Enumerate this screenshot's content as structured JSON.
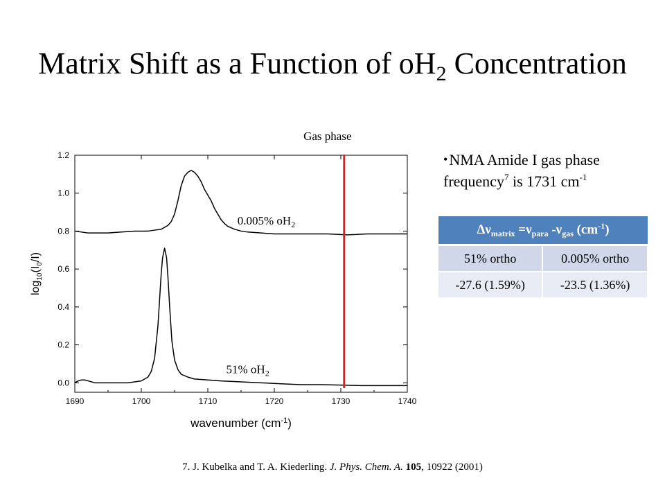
{
  "slide": {
    "title_main": "Matrix Shift as a Function of oH",
    "title_sub": "2",
    "title_end": " Concentration",
    "bullet": {
      "text_a": "NMA Amide I gas phase frequency",
      "sup": "7",
      "text_b": " is 1731 cm",
      "unit_sup": "-1"
    },
    "table": {
      "header": {
        "delta_nu": "Δν",
        "sub_matrix": "matrix",
        "eq": " =ν",
        "sub_para": "para",
        "minus": " -ν",
        "sub_gas": "gas",
        "unit_open": " (cm",
        "unit_sup": "-1",
        "unit_close": ")"
      },
      "rows": [
        [
          "51% ortho",
          "0.005% ortho"
        ],
        [
          "-27.6 (1.59%)",
          "-23.5 (1.36%)"
        ]
      ]
    },
    "reference": {
      "num": "7.  J. Kubelka and T. A. Kiederling. ",
      "journal": "J. Phys. Chem. A.",
      "vol": "105",
      "rest": ", 10922 (2001)"
    }
  },
  "chart_data": {
    "type": "line",
    "xlabel": "wavenumber (cm-1)",
    "ylabel": "log10(I0/I)",
    "xlim": [
      1690,
      1740
    ],
    "ylim": [
      -0.05,
      1.2
    ],
    "xticks": [
      1690,
      1700,
      1710,
      1720,
      1730,
      1740
    ],
    "xtick_labels": [
      "1690",
      "1700",
      "1710",
      "1720",
      "1730",
      "1740"
    ],
    "yticks": [
      0.0,
      0.2,
      0.4,
      0.6,
      0.8,
      1.0,
      1.2
    ],
    "ytick_labels": [
      "0.0",
      "0.2",
      "0.4",
      "0.6",
      "0.8",
      "1.0",
      "1.2"
    ],
    "grid": false,
    "series": [
      {
        "name": "0.005% oH2",
        "color": "#000000",
        "x": [
          1690,
          1691,
          1692,
          1693,
          1695,
          1697,
          1699,
          1700,
          1701,
          1702,
          1703,
          1704,
          1704.5,
          1705,
          1705.5,
          1706,
          1706.5,
          1707,
          1707.5,
          1708,
          1708.5,
          1709,
          1709.5,
          1710,
          1710.5,
          1711,
          1711.5,
          1712,
          1712.5,
          1713,
          1714,
          1715,
          1716,
          1718,
          1720,
          1722,
          1725,
          1728,
          1731,
          1734,
          1737,
          1740
        ],
        "y": [
          0.8,
          0.795,
          0.79,
          0.79,
          0.79,
          0.795,
          0.8,
          0.8,
          0.8,
          0.805,
          0.81,
          0.83,
          0.85,
          0.89,
          0.96,
          1.04,
          1.09,
          1.11,
          1.12,
          1.11,
          1.09,
          1.06,
          1.02,
          0.99,
          0.96,
          0.92,
          0.89,
          0.86,
          0.84,
          0.825,
          0.81,
          0.8,
          0.795,
          0.79,
          0.785,
          0.785,
          0.785,
          0.785,
          0.78,
          0.785,
          0.785,
          0.785
        ]
      },
      {
        "name": "51% oH2",
        "color": "#000000",
        "x": [
          1690,
          1690.5,
          1691,
          1691.5,
          1692,
          1693,
          1694,
          1696,
          1698,
          1700,
          1701,
          1701.5,
          1702,
          1702.5,
          1703,
          1703.2,
          1703.5,
          1703.8,
          1704,
          1704.3,
          1704.6,
          1705,
          1705.5,
          1706,
          1707,
          1708,
          1710,
          1712,
          1715,
          1718,
          1721,
          1724,
          1727,
          1730,
          1733,
          1736,
          1740
        ],
        "y": [
          0.0,
          0.01,
          0.015,
          0.015,
          0.01,
          0.0,
          0.0,
          0.0,
          0.0,
          0.01,
          0.03,
          0.06,
          0.13,
          0.3,
          0.58,
          0.66,
          0.71,
          0.66,
          0.56,
          0.38,
          0.22,
          0.12,
          0.07,
          0.045,
          0.03,
          0.02,
          0.015,
          0.01,
          0.005,
          0.0,
          -0.005,
          -0.01,
          -0.01,
          -0.012,
          -0.015,
          -0.015,
          -0.015
        ]
      }
    ],
    "annotations": [
      {
        "label": "0.005% oH2",
        "main": "0.005% oH",
        "sub": "2",
        "x": 1718.8,
        "y": 0.835
      },
      {
        "label": "51% oH2",
        "main": "51% oH",
        "sub": "2",
        "x": 1716.0,
        "y": 0.05
      },
      {
        "label": "Gas phase",
        "main": "Gas phase",
        "x": 1728.0,
        "y": 1.28
      }
    ],
    "reference_line": {
      "x": 1730.5,
      "color": "#e02020",
      "label": "Gas phase"
    }
  }
}
